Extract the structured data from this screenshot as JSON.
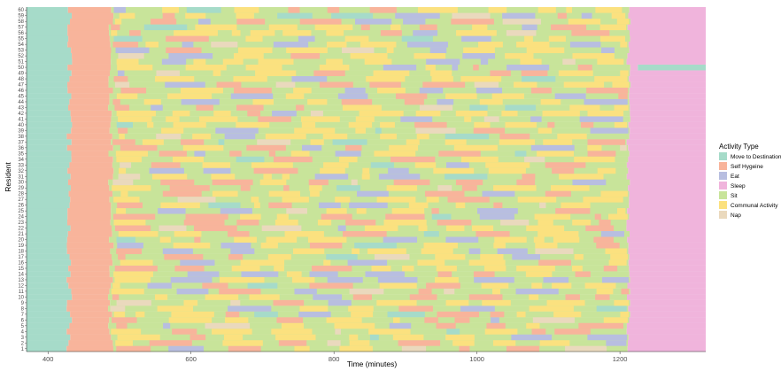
{
  "chart_data": {
    "type": "bar",
    "orientation": "horizontal",
    "stacking": "timeline",
    "xlabel": "Time (minutes)",
    "ylabel": "Resident",
    "xlim": [
      370,
      1320
    ],
    "x_ticks": [
      400,
      600,
      800,
      1000,
      1200
    ],
    "residents": [
      1,
      2,
      3,
      4,
      5,
      6,
      7,
      8,
      9,
      10,
      11,
      12,
      13,
      14,
      15,
      16,
      17,
      18,
      19,
      20,
      21,
      22,
      23,
      24,
      25,
      26,
      27,
      28,
      29,
      30,
      31,
      32,
      33,
      34,
      35,
      36,
      37,
      38,
      39,
      40,
      41,
      42,
      43,
      44,
      45,
      46,
      47,
      48,
      49,
      50,
      51,
      52,
      53,
      54,
      55,
      56,
      57,
      58,
      59,
      60
    ],
    "legend": {
      "title": "Activity Type",
      "placement": "right",
      "entries": [
        {
          "name": "Move to Destination",
          "color": "#a6dbc9"
        },
        {
          "name": "Self Hygeine",
          "color": "#f8b49b"
        },
        {
          "name": "Eat",
          "color": "#b8bee0"
        },
        {
          "name": "Sleep",
          "color": "#f0b4dc"
        },
        {
          "name": "Sit",
          "color": "#c8e49a"
        },
        {
          "name": "Communal Activity",
          "color": "#fbe17f"
        },
        {
          "name": "Nap",
          "color": "#ead9bd"
        }
      ]
    },
    "base_schedule": [
      {
        "activity": "Move to Destination",
        "start": 370,
        "end": 430
      },
      {
        "activity": "Self Hygeine",
        "start": 430,
        "end": 488
      },
      {
        "activity": "Sit",
        "start": 488,
        "end": 1212
      },
      {
        "activity": "Sleep",
        "start": 1212,
        "end": 1320
      }
    ],
    "notes": "Each resident row is a horizontal timeline of activity segments; morning starts with Move to Destination then Self Hygeine, day is mostly Sit interleaved with Communal Activity, Eat, Nap and Self Hygeine, evening ends with Sleep. Resident 50 ends with Move to Destination after ~1225 min."
  }
}
